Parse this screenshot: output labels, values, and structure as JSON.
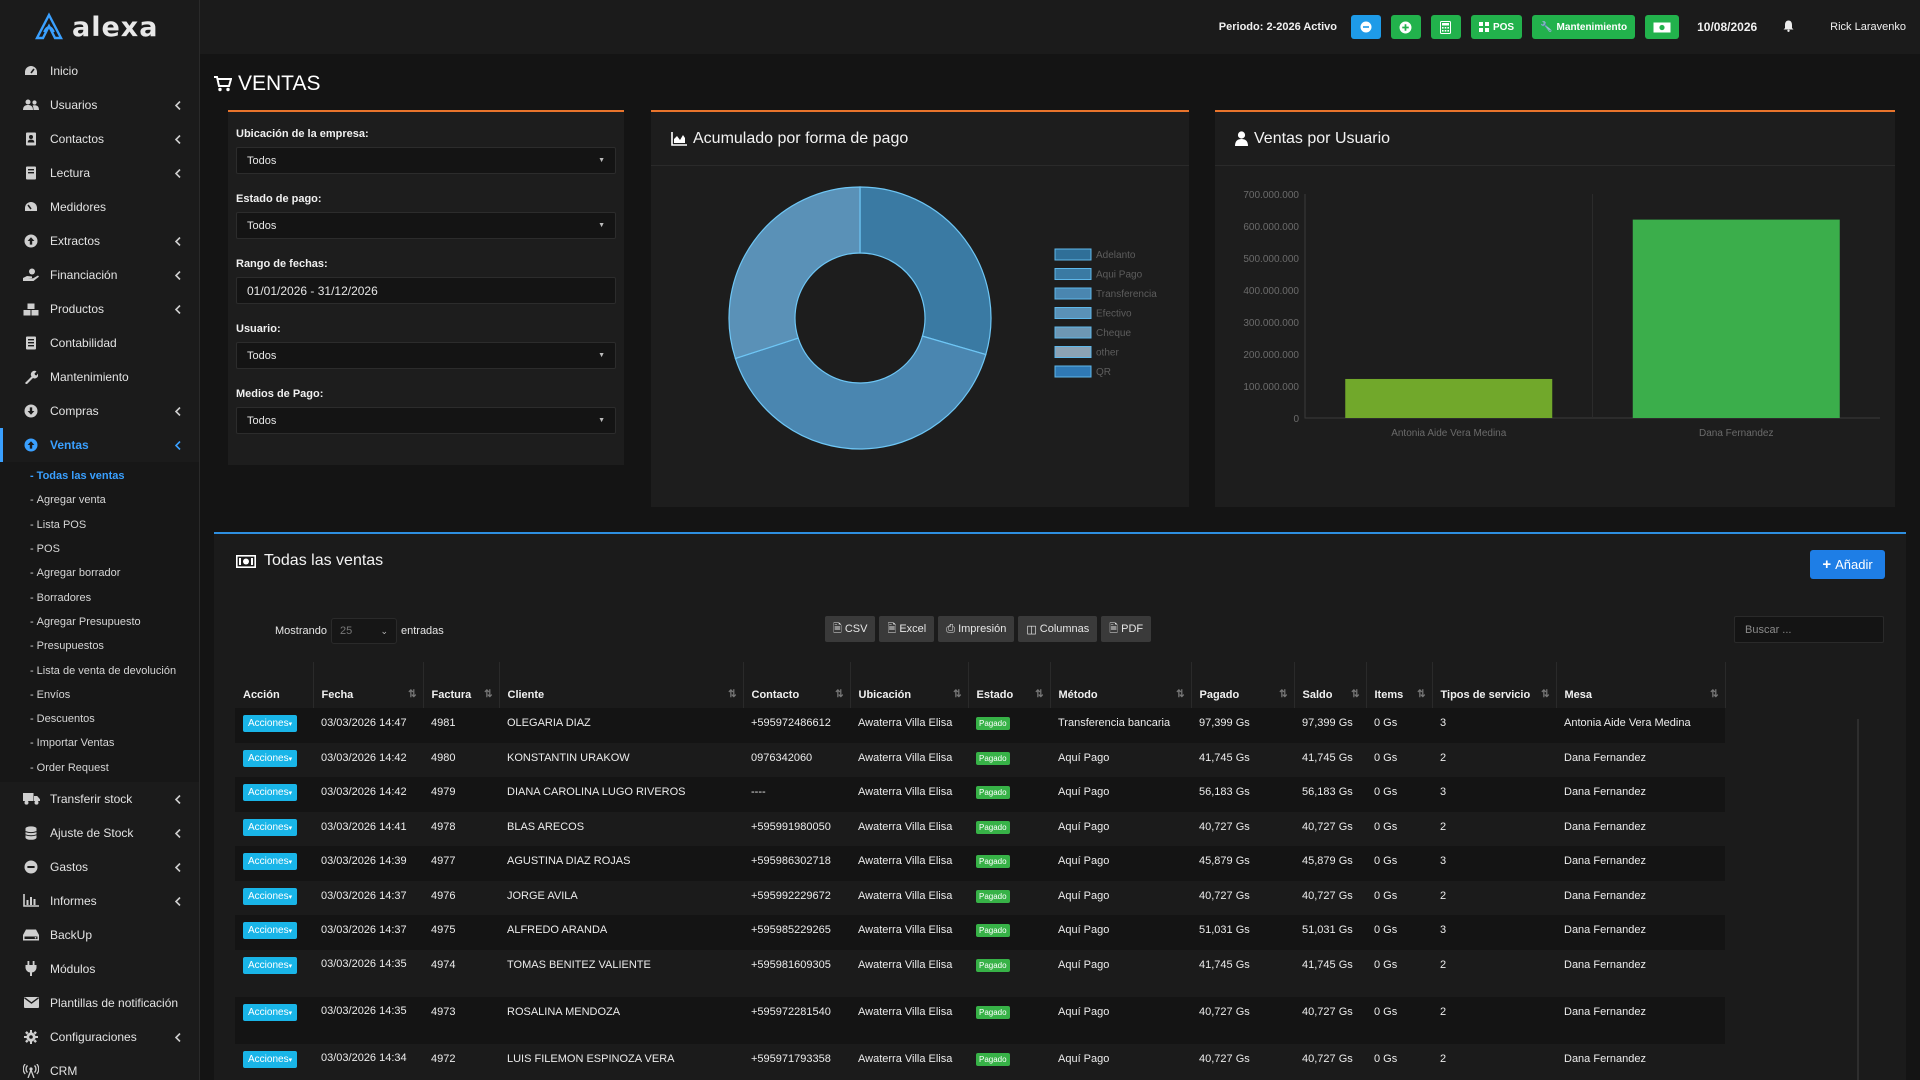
{
  "app": {
    "brand": "alexa"
  },
  "topbar": {
    "periodo": "Periodo: 2-2026 Activo",
    "pos_label": "POS",
    "mantenimiento_label": "Mantenimiento",
    "date": "10/08/2026",
    "user": "Rick Laravenko"
  },
  "sidebar": {
    "items": [
      {
        "label": "Inicio",
        "icon": "dashboard-icon",
        "chevron": false
      },
      {
        "label": "Usuarios",
        "icon": "users-icon",
        "chevron": true
      },
      {
        "label": "Contactos",
        "icon": "address-book-icon",
        "chevron": true
      },
      {
        "label": "Lectura",
        "icon": "book-icon",
        "chevron": true
      },
      {
        "label": "Medidores",
        "icon": "gauge-icon",
        "chevron": false
      },
      {
        "label": "Extractos",
        "icon": "arrow-circle-up-icon",
        "chevron": true
      },
      {
        "label": "Financiación",
        "icon": "hand-money-icon",
        "chevron": true
      },
      {
        "label": "Productos",
        "icon": "cubes-icon",
        "chevron": true
      },
      {
        "label": "Contabilidad",
        "icon": "ledger-icon",
        "chevron": false
      },
      {
        "label": "Mantenimiento",
        "icon": "wrench-icon",
        "chevron": false
      },
      {
        "label": "Compras",
        "icon": "arrow-circle-down-icon",
        "chevron": true
      },
      {
        "label": "Ventas",
        "icon": "arrow-circle-up-icon",
        "chevron": true
      },
      {
        "label": "Transferir stock",
        "icon": "truck-icon",
        "chevron": true
      },
      {
        "label": "Ajuste de Stock",
        "icon": "database-icon",
        "chevron": true
      },
      {
        "label": "Gastos",
        "icon": "minus-circle-icon",
        "chevron": true
      },
      {
        "label": "Informes",
        "icon": "bar-chart-icon",
        "chevron": true
      },
      {
        "label": "BackUp",
        "icon": "hdd-icon",
        "chevron": false
      },
      {
        "label": "Módulos",
        "icon": "plug-icon",
        "chevron": false
      },
      {
        "label": "Plantillas de notificación",
        "icon": "envelope-icon",
        "chevron": false
      },
      {
        "label": "Configuraciones",
        "icon": "cog-icon",
        "chevron": true
      },
      {
        "label": "CRM",
        "icon": "broadcast-icon",
        "chevron": false
      }
    ],
    "ventas_sub": [
      "Todas las ventas",
      "Agregar venta",
      "Lista POS",
      "POS",
      "Agregar borrador",
      "Borradores",
      "Agregar Presupuesto",
      "Presupuestos",
      "Lista de venta de devolución",
      "Envíos",
      "Descuentos",
      "Importar Ventas",
      "Order Request"
    ]
  },
  "page": {
    "title": "VENTAS"
  },
  "filters": {
    "ubicacion_label": "Ubicación de la empresa:",
    "ubicacion_value": "Todos",
    "estado_label": "Estado de pago:",
    "estado_value": "Todos",
    "rango_label": "Rango de fechas:",
    "rango_value": "01/01/2026 - 31/12/2026",
    "usuario_label": "Usuario:",
    "usuario_value": "Todos",
    "medios_label": "Medios de Pago:",
    "medios_value": "Todos"
  },
  "pie_panel": {
    "title": "Acumulado por forma de pago"
  },
  "bar_panel": {
    "title": "Ventas por Usuario"
  },
  "chart_data": [
    {
      "type": "pie",
      "title": "Acumulado por forma de pago",
      "categories": [
        "Adelanto",
        "Aqui Pago",
        "Transferencia",
        "Efectivo",
        "Cheque",
        "other",
        "QR"
      ],
      "values": [
        0,
        0.295,
        0.405,
        0.3,
        0,
        0,
        0.0
      ],
      "donut": true,
      "legend": "right",
      "colors": [
        "#2f6f98",
        "#3a7aa3",
        "#4a86b0",
        "#5a91b7",
        "#6e97b4",
        "#8ca2b4",
        "#2f79b5"
      ]
    },
    {
      "type": "bar",
      "title": "Ventas por Usuario",
      "categories": [
        "Antonia Aide Vera Medina",
        "Dana Fernandez"
      ],
      "values": [
        122000000,
        620000000
      ],
      "ylim": [
        0,
        700000000
      ],
      "yticks": [
        "0",
        "100.000.000",
        "200.000.000",
        "300.000.000",
        "400.000.000",
        "500.000.000",
        "600.000.000",
        "700.000.000"
      ],
      "colors": [
        "#71a82b",
        "#3bae4b"
      ],
      "grid": false
    }
  ],
  "sales": {
    "title": "Todas las ventas",
    "add_label": "Añadir",
    "mostrando": "Mostrando",
    "length_value": "25",
    "entradas": "entradas",
    "csv": "CSV",
    "excel": "Excel",
    "impresion": "Impresión",
    "columnas": "Columnas",
    "pdf": "PDF",
    "search_placeholder": "Buscar ...",
    "columns": [
      "Acción",
      "Fecha",
      "Factura",
      "Cliente",
      "Contacto",
      "Ubicación",
      "Estado",
      "Método",
      "Pagado",
      "Saldo",
      "Items",
      "Tipos de servicio",
      "Mesa"
    ],
    "action_label": "Acciones",
    "rows": [
      {
        "fecha": "03/03/2026 14:47",
        "factura": "4981",
        "cliente": "OLEGARIA DIAZ",
        "contacto": "+595972486612",
        "ubicacion": "Awaterra Villa Elisa",
        "estado": "Pagado",
        "metodo": "Transferencia bancaria",
        "pagado": "97,399 Gs",
        "saldo": "97,399 Gs",
        "items": "0 Gs",
        "tipos": "3",
        "mesa": "Antonia Aide Vera Medina"
      },
      {
        "fecha": "03/03/2026 14:42",
        "factura": "4980",
        "cliente": "KONSTANTIN URAKOW",
        "contacto": "0976342060",
        "ubicacion": "Awaterra Villa Elisa",
        "estado": "Pagado",
        "metodo": "Aquí Pago",
        "pagado": "41,745 Gs",
        "saldo": "41,745 Gs",
        "items": "0 Gs",
        "tipos": "2",
        "mesa": "Dana Fernandez"
      },
      {
        "fecha": "03/03/2026 14:42",
        "factura": "4979",
        "cliente": "DIANA CAROLINA LUGO RIVEROS",
        "contacto": "----",
        "ubicacion": "Awaterra Villa Elisa",
        "estado": "Pagado",
        "metodo": "Aquí Pago",
        "pagado": "56,183 Gs",
        "saldo": "56,183 Gs",
        "items": "0 Gs",
        "tipos": "3",
        "mesa": "Dana Fernandez"
      },
      {
        "fecha": "03/03/2026 14:41",
        "factura": "4978",
        "cliente": "BLAS ARECOS",
        "contacto": "+595991980050",
        "ubicacion": "Awaterra Villa Elisa",
        "estado": "Pagado",
        "metodo": "Aquí Pago",
        "pagado": "40,727 Gs",
        "saldo": "40,727 Gs",
        "items": "0 Gs",
        "tipos": "2",
        "mesa": "Dana Fernandez"
      },
      {
        "fecha": "03/03/2026 14:39",
        "factura": "4977",
        "cliente": "AGUSTINA DIAZ ROJAS",
        "contacto": "+595986302718",
        "ubicacion": "Awaterra Villa Elisa",
        "estado": "Pagado",
        "metodo": "Aquí Pago",
        "pagado": "45,879 Gs",
        "saldo": "45,879 Gs",
        "items": "0 Gs",
        "tipos": "3",
        "mesa": "Dana Fernandez"
      },
      {
        "fecha": "03/03/2026 14:37",
        "factura": "4976",
        "cliente": "JORGE AVILA",
        "contacto": "+595992229672",
        "ubicacion": "Awaterra Villa Elisa",
        "estado": "Pagado",
        "metodo": "Aquí Pago",
        "pagado": "40,727 Gs",
        "saldo": "40,727 Gs",
        "items": "0 Gs",
        "tipos": "2",
        "mesa": "Dana Fernandez"
      },
      {
        "fecha": "03/03/2026 14:37",
        "factura": "4975",
        "cliente": "ALFREDO ARANDA",
        "contacto": "+595985229265",
        "ubicacion": "Awaterra Villa Elisa",
        "estado": "Pagado",
        "metodo": "Aquí Pago",
        "pagado": "51,031 Gs",
        "saldo": "51,031 Gs",
        "items": "0 Gs",
        "tipos": "3",
        "mesa": "Dana Fernandez"
      },
      {
        "fecha": "03/03/2026 14:35",
        "factura": "4974",
        "cliente": "TOMAS BENITEZ VALIENTE",
        "contacto": "+595981609305",
        "ubicacion": "Awaterra Villa Elisa",
        "estado": "Pagado",
        "metodo": "Aquí Pago",
        "pagado": "41,745 Gs",
        "saldo": "41,745 Gs",
        "items": "0 Gs",
        "tipos": "2",
        "mesa": "Dana Fernandez"
      },
      {
        "fecha": "03/03/2026 14:35",
        "factura": "4973",
        "cliente": "ROSALINA MENDOZA",
        "contacto": "+595972281540",
        "ubicacion": "Awaterra Villa Elisa",
        "estado": "Pagado",
        "metodo": "Aquí Pago",
        "pagado": "40,727 Gs",
        "saldo": "40,727 Gs",
        "items": "0 Gs",
        "tipos": "2",
        "mesa": "Dana Fernandez"
      },
      {
        "fecha": "03/03/2026 14:34",
        "factura": "4972",
        "cliente": "LUIS FILEMON ESPINOZA VERA",
        "contacto": "+595971793358",
        "ubicacion": "Awaterra Villa Elisa",
        "estado": "Pagado",
        "metodo": "Aquí Pago",
        "pagado": "40,727 Gs",
        "saldo": "40,727 Gs",
        "items": "0 Gs",
        "tipos": "2",
        "mesa": "Dana Fernandez"
      }
    ]
  }
}
